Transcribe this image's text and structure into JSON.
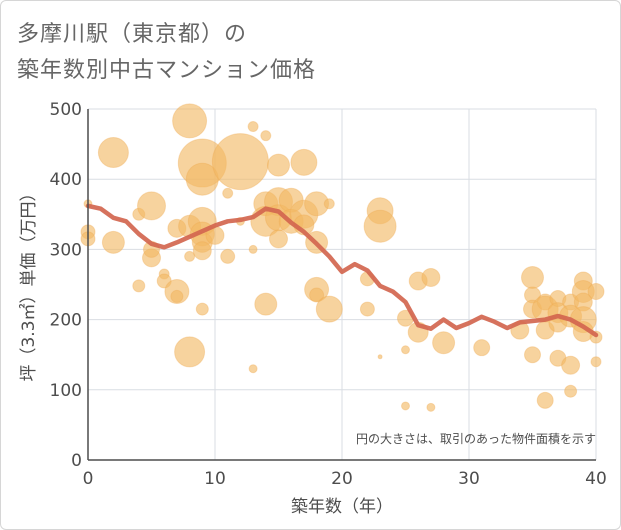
{
  "title_line1": "多摩川駅（東京都）の",
  "title_line2": "築年数別中古マンション価格",
  "chart_data": {
    "type": "scatter",
    "title": "多摩川駅（東京都）の築年数別中古マンション価格",
    "xlabel": "築年数（年）",
    "ylabel": "坪（3.3㎡）単価（万円）",
    "xlim": [
      0,
      40
    ],
    "ylim": [
      0,
      500
    ],
    "xticks": [
      "0",
      "10",
      "20",
      "30",
      "40"
    ],
    "yticks": [
      "0",
      "100",
      "200",
      "300",
      "400",
      "500"
    ],
    "grid": true,
    "annotation": "円の大きさは、取引のあった物件面積を示す",
    "colors": {
      "bubble": "#f2b863",
      "line": "#d2664f",
      "grid": "#d9dde3",
      "axis": "#4d4d4d"
    },
    "trend": {
      "x": [
        0,
        1,
        2,
        3,
        4,
        5,
        6,
        7,
        8,
        9,
        10,
        11,
        12,
        13,
        14,
        15,
        16,
        17,
        18,
        19,
        20,
        21,
        22,
        23,
        24,
        25,
        26,
        27,
        28,
        29,
        30,
        31,
        32,
        33,
        34,
        35,
        36,
        37,
        38,
        39,
        40
      ],
      "y": [
        362,
        358,
        345,
        340,
        322,
        308,
        303,
        310,
        318,
        326,
        334,
        340,
        342,
        346,
        358,
        354,
        338,
        325,
        308,
        290,
        268,
        279,
        270,
        248,
        240,
        225,
        192,
        187,
        200,
        188,
        195,
        204,
        197,
        188,
        196,
        198,
        200,
        205,
        200,
        190,
        178
      ]
    },
    "points": [
      {
        "x": 0,
        "y": 365,
        "s": 4
      },
      {
        "x": 0,
        "y": 325,
        "s": 7
      },
      {
        "x": 0,
        "y": 315,
        "s": 7
      },
      {
        "x": 2,
        "y": 438,
        "s": 15
      },
      {
        "x": 2,
        "y": 310,
        "s": 11
      },
      {
        "x": 4,
        "y": 350,
        "s": 6
      },
      {
        "x": 4,
        "y": 248,
        "s": 6
      },
      {
        "x": 5,
        "y": 362,
        "s": 14
      },
      {
        "x": 5,
        "y": 288,
        "s": 9
      },
      {
        "x": 5,
        "y": 300,
        "s": 8
      },
      {
        "x": 6,
        "y": 265,
        "s": 5
      },
      {
        "x": 6,
        "y": 255,
        "s": 7
      },
      {
        "x": 7,
        "y": 240,
        "s": 12
      },
      {
        "x": 7,
        "y": 233,
        "s": 6
      },
      {
        "x": 7,
        "y": 330,
        "s": 9
      },
      {
        "x": 8,
        "y": 483,
        "s": 17
      },
      {
        "x": 8,
        "y": 333,
        "s": 11
      },
      {
        "x": 8,
        "y": 154,
        "s": 15
      },
      {
        "x": 8,
        "y": 290,
        "s": 5
      },
      {
        "x": 9,
        "y": 423,
        "s": 24
      },
      {
        "x": 9,
        "y": 400,
        "s": 16
      },
      {
        "x": 9,
        "y": 340,
        "s": 14
      },
      {
        "x": 9,
        "y": 322,
        "s": 12
      },
      {
        "x": 9,
        "y": 310,
        "s": 10
      },
      {
        "x": 9,
        "y": 298,
        "s": 9
      },
      {
        "x": 9,
        "y": 215,
        "s": 6
      },
      {
        "x": 10,
        "y": 320,
        "s": 9
      },
      {
        "x": 11,
        "y": 290,
        "s": 7
      },
      {
        "x": 11,
        "y": 380,
        "s": 5
      },
      {
        "x": 12,
        "y": 425,
        "s": 28
      },
      {
        "x": 12,
        "y": 340,
        "s": 4
      },
      {
        "x": 13,
        "y": 475,
        "s": 5
      },
      {
        "x": 13,
        "y": 300,
        "s": 4
      },
      {
        "x": 13,
        "y": 130,
        "s": 4
      },
      {
        "x": 14,
        "y": 462,
        "s": 5
      },
      {
        "x": 14,
        "y": 365,
        "s": 12
      },
      {
        "x": 14,
        "y": 340,
        "s": 15
      },
      {
        "x": 14,
        "y": 222,
        "s": 11
      },
      {
        "x": 15,
        "y": 420,
        "s": 11
      },
      {
        "x": 15,
        "y": 368,
        "s": 14
      },
      {
        "x": 15,
        "y": 345,
        "s": 13
      },
      {
        "x": 15,
        "y": 315,
        "s": 9
      },
      {
        "x": 16,
        "y": 370,
        "s": 12
      },
      {
        "x": 16,
        "y": 340,
        "s": 12
      },
      {
        "x": 17,
        "y": 424,
        "s": 13
      },
      {
        "x": 17,
        "y": 350,
        "s": 14
      },
      {
        "x": 17,
        "y": 335,
        "s": 10
      },
      {
        "x": 18,
        "y": 365,
        "s": 12
      },
      {
        "x": 18,
        "y": 310,
        "s": 11
      },
      {
        "x": 18,
        "y": 243,
        "s": 12
      },
      {
        "x": 18,
        "y": 235,
        "s": 7
      },
      {
        "x": 19,
        "y": 365,
        "s": 5
      },
      {
        "x": 19,
        "y": 215,
        "s": 13
      },
      {
        "x": 22,
        "y": 258,
        "s": 7
      },
      {
        "x": 22,
        "y": 215,
        "s": 7
      },
      {
        "x": 23,
        "y": 355,
        "s": 13
      },
      {
        "x": 23,
        "y": 333,
        "s": 16
      },
      {
        "x": 23,
        "y": 147,
        "s": 2
      },
      {
        "x": 25,
        "y": 202,
        "s": 8
      },
      {
        "x": 25,
        "y": 157,
        "s": 4
      },
      {
        "x": 25,
        "y": 77,
        "s": 4
      },
      {
        "x": 26,
        "y": 255,
        "s": 9
      },
      {
        "x": 26,
        "y": 182,
        "s": 10
      },
      {
        "x": 27,
        "y": 260,
        "s": 9
      },
      {
        "x": 27,
        "y": 75,
        "s": 4
      },
      {
        "x": 28,
        "y": 167,
        "s": 11
      },
      {
        "x": 31,
        "y": 160,
        "s": 8
      },
      {
        "x": 34,
        "y": 185,
        "s": 9
      },
      {
        "x": 35,
        "y": 260,
        "s": 11
      },
      {
        "x": 35,
        "y": 235,
        "s": 8
      },
      {
        "x": 35,
        "y": 215,
        "s": 9
      },
      {
        "x": 35,
        "y": 150,
        "s": 8
      },
      {
        "x": 36,
        "y": 225,
        "s": 8
      },
      {
        "x": 36,
        "y": 215,
        "s": 13
      },
      {
        "x": 36,
        "y": 185,
        "s": 9
      },
      {
        "x": 36,
        "y": 85,
        "s": 8
      },
      {
        "x": 37,
        "y": 230,
        "s": 8
      },
      {
        "x": 37,
        "y": 210,
        "s": 10
      },
      {
        "x": 37,
        "y": 195,
        "s": 9
      },
      {
        "x": 37,
        "y": 145,
        "s": 8
      },
      {
        "x": 38,
        "y": 225,
        "s": 8
      },
      {
        "x": 38,
        "y": 205,
        "s": 11
      },
      {
        "x": 38,
        "y": 135,
        "s": 9
      },
      {
        "x": 38,
        "y": 98,
        "s": 6
      },
      {
        "x": 39,
        "y": 255,
        "s": 9
      },
      {
        "x": 39,
        "y": 240,
        "s": 11
      },
      {
        "x": 39,
        "y": 225,
        "s": 9
      },
      {
        "x": 39,
        "y": 200,
        "s": 13
      },
      {
        "x": 39,
        "y": 183,
        "s": 10
      },
      {
        "x": 40,
        "y": 240,
        "s": 8
      },
      {
        "x": 40,
        "y": 175,
        "s": 6
      },
      {
        "x": 40,
        "y": 140,
        "s": 5
      }
    ]
  }
}
